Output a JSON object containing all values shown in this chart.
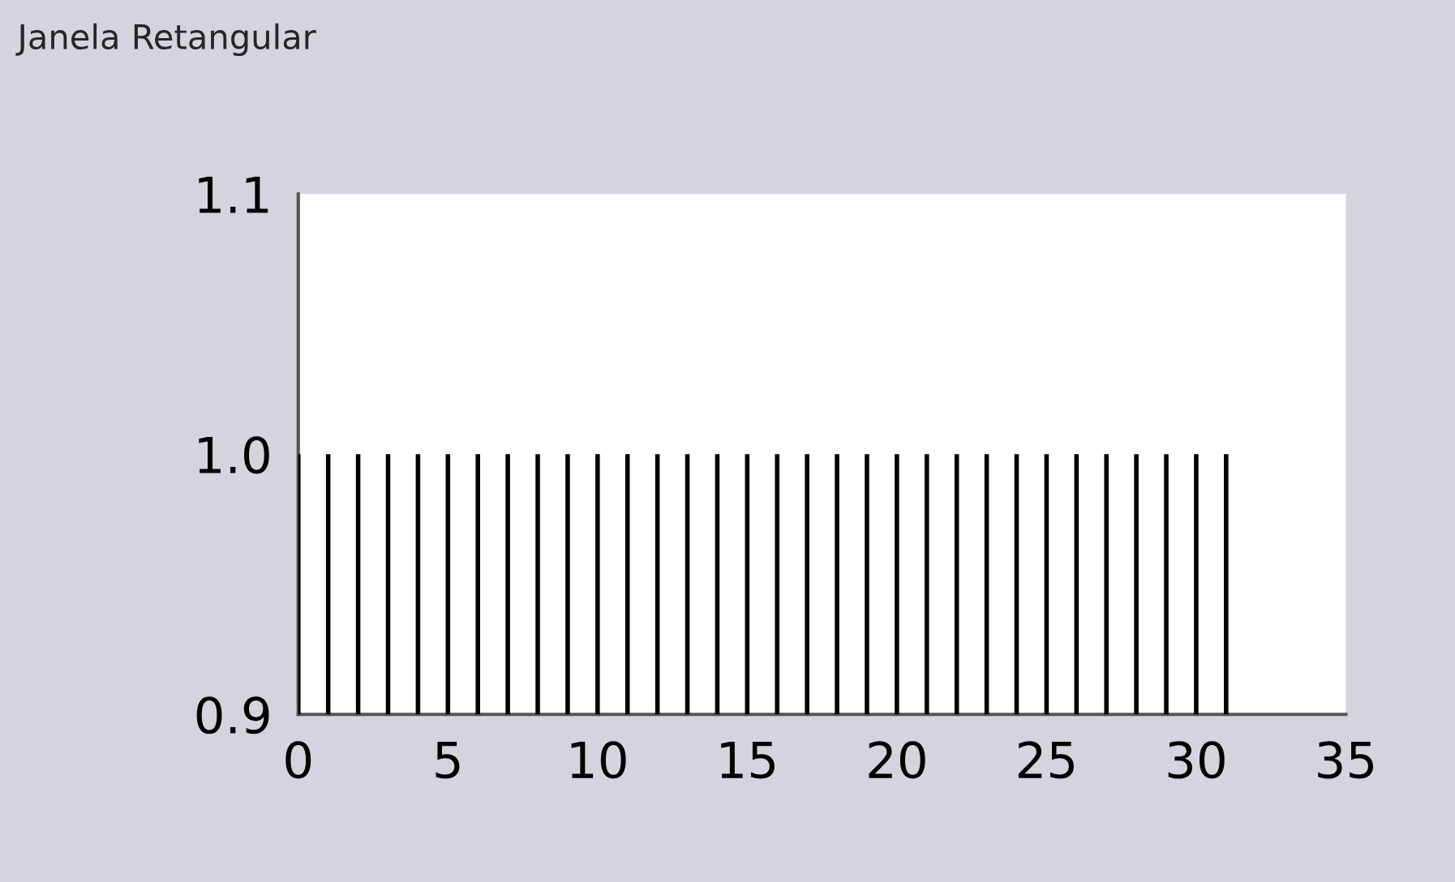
{
  "chart_data": {
    "type": "bar",
    "title": "Janela Retangular",
    "x": [
      0,
      1,
      2,
      3,
      4,
      5,
      6,
      7,
      8,
      9,
      10,
      11,
      12,
      13,
      14,
      15,
      16,
      17,
      18,
      19,
      20,
      21,
      22,
      23,
      24,
      25,
      26,
      27,
      28,
      29,
      30,
      31
    ],
    "values": [
      1.0,
      1.0,
      1.0,
      1.0,
      1.0,
      1.0,
      1.0,
      1.0,
      1.0,
      1.0,
      1.0,
      1.0,
      1.0,
      1.0,
      1.0,
      1.0,
      1.0,
      1.0,
      1.0,
      1.0,
      1.0,
      1.0,
      1.0,
      1.0,
      1.0,
      1.0,
      1.0,
      1.0,
      1.0,
      1.0,
      1.0,
      1.0
    ],
    "color": "#000000",
    "xlim": [
      0,
      35
    ],
    "xticks": [
      0,
      5,
      10,
      15,
      20,
      25,
      30,
      35
    ],
    "ylim": [
      0.9,
      1.1
    ],
    "yticks": [
      {
        "value": 0.9,
        "label": "0.9"
      },
      {
        "value": 1.0,
        "label": "1.0"
      },
      {
        "value": 1.1,
        "label": "1.1"
      }
    ],
    "grid": false
  }
}
